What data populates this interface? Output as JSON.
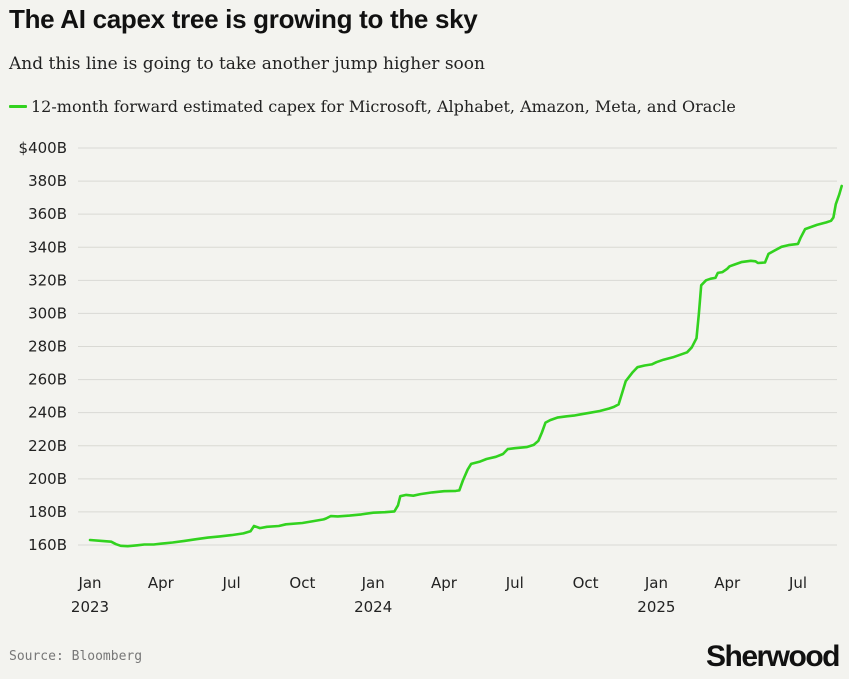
{
  "chart_data": {
    "type": "line",
    "title": "The AI capex tree is growing to the sky",
    "subtitle": "And this line is going to take another jump higher soon",
    "xlabel": "",
    "ylabel": "",
    "ylim": [
      150,
      400
    ],
    "yticks": [
      160,
      180,
      200,
      220,
      240,
      260,
      280,
      300,
      320,
      340,
      360,
      380,
      400
    ],
    "ytick_labels": [
      "160B",
      "180B",
      "200B",
      "220B",
      "240B",
      "260B",
      "280B",
      "300B",
      "320B",
      "340B",
      "360B",
      "380B",
      "$400B"
    ],
    "xlim": [
      0,
      31.2
    ],
    "xticks": [
      {
        "t": 0,
        "line1": "Jan",
        "line2": "2023"
      },
      {
        "t": 3,
        "line1": "Apr",
        "line2": ""
      },
      {
        "t": 6,
        "line1": "Jul",
        "line2": ""
      },
      {
        "t": 9,
        "line1": "Oct",
        "line2": ""
      },
      {
        "t": 12,
        "line1": "Jan",
        "line2": "2024"
      },
      {
        "t": 15,
        "line1": "Apr",
        "line2": ""
      },
      {
        "t": 18,
        "line1": "Jul",
        "line2": ""
      },
      {
        "t": 21,
        "line1": "Oct",
        "line2": ""
      },
      {
        "t": 24,
        "line1": "Jan",
        "line2": "2025"
      },
      {
        "t": 27,
        "line1": "Apr",
        "line2": ""
      },
      {
        "t": 30,
        "line1": "Jul",
        "line2": ""
      }
    ],
    "grid": true,
    "legend_position": "top-left",
    "series": [
      {
        "name": "12-month forward estimated capex for Microsoft, Alphabet, Amazon, Meta, and Oracle",
        "color": "#32d21f",
        "points": [
          [
            0,
            163
          ],
          [
            0.5,
            162.5
          ],
          [
            0.9,
            162
          ],
          [
            1.1,
            160.5
          ],
          [
            1.3,
            159.5
          ],
          [
            1.6,
            159.3
          ],
          [
            2.0,
            159.8
          ],
          [
            2.3,
            160.3
          ],
          [
            2.7,
            160.3
          ],
          [
            3.0,
            160.8
          ],
          [
            3.5,
            161.5
          ],
          [
            4.0,
            162.5
          ],
          [
            4.5,
            163.5
          ],
          [
            5.0,
            164.5
          ],
          [
            5.5,
            165.2
          ],
          [
            6.0,
            166
          ],
          [
            6.5,
            167
          ],
          [
            6.8,
            168.3
          ],
          [
            6.95,
            171.5
          ],
          [
            7.05,
            171
          ],
          [
            7.2,
            170.2
          ],
          [
            7.5,
            171
          ],
          [
            8.0,
            171.5
          ],
          [
            8.3,
            172.5
          ],
          [
            9.0,
            173.3
          ],
          [
            9.5,
            174.5
          ],
          [
            9.9,
            175.5
          ],
          [
            10.0,
            176
          ],
          [
            10.2,
            177.5
          ],
          [
            10.5,
            177.3
          ],
          [
            11.0,
            177.8
          ],
          [
            11.5,
            178.5
          ],
          [
            12.0,
            179.5
          ],
          [
            12.5,
            179.8
          ],
          [
            12.9,
            180.3
          ],
          [
            13.05,
            184
          ],
          [
            13.15,
            189.5
          ],
          [
            13.4,
            190.3
          ],
          [
            13.7,
            189.8
          ],
          [
            14.0,
            190.8
          ],
          [
            14.5,
            191.8
          ],
          [
            15.0,
            192.5
          ],
          [
            15.5,
            192.7
          ],
          [
            15.65,
            193
          ],
          [
            15.8,
            199
          ],
          [
            16.0,
            205.5
          ],
          [
            16.15,
            209
          ],
          [
            16.5,
            210.3
          ],
          [
            16.8,
            212
          ],
          [
            17.2,
            213.3
          ],
          [
            17.5,
            215
          ],
          [
            17.7,
            218
          ],
          [
            18.0,
            218.5
          ],
          [
            18.5,
            219.2
          ],
          [
            18.8,
            220.5
          ],
          [
            19.0,
            223
          ],
          [
            19.15,
            228
          ],
          [
            19.3,
            234
          ],
          [
            19.5,
            235.5
          ],
          [
            19.8,
            237
          ],
          [
            20.2,
            237.8
          ],
          [
            20.5,
            238.2
          ],
          [
            20.8,
            239
          ],
          [
            21.2,
            240
          ],
          [
            21.6,
            241
          ],
          [
            22.0,
            242.5
          ],
          [
            22.2,
            243.5
          ],
          [
            22.4,
            245
          ],
          [
            22.55,
            252
          ],
          [
            22.7,
            259
          ],
          [
            23.0,
            264.5
          ],
          [
            23.2,
            267.5
          ],
          [
            23.5,
            268.5
          ],
          [
            23.8,
            269.2
          ],
          [
            24.0,
            270.5
          ],
          [
            24.3,
            272
          ],
          [
            24.7,
            273.5
          ],
          [
            25.0,
            275
          ],
          [
            25.3,
            276.5
          ],
          [
            25.5,
            279.5
          ],
          [
            25.7,
            285
          ],
          [
            25.8,
            300
          ],
          [
            25.9,
            317
          ],
          [
            26.1,
            320
          ],
          [
            26.3,
            321
          ],
          [
            26.5,
            321.5
          ],
          [
            26.6,
            324.5
          ],
          [
            26.8,
            325
          ],
          [
            27.0,
            327
          ],
          [
            27.1,
            328.5
          ],
          [
            27.3,
            329.5
          ],
          [
            27.6,
            331
          ],
          [
            28.0,
            331.8
          ],
          [
            28.2,
            331.5
          ],
          [
            28.3,
            330.5
          ],
          [
            28.6,
            330.8
          ],
          [
            28.75,
            336
          ],
          [
            29.0,
            338
          ],
          [
            29.3,
            340.3
          ],
          [
            29.6,
            341.3
          ],
          [
            30.0,
            342
          ],
          [
            30.1,
            345.5
          ],
          [
            30.3,
            351
          ],
          [
            30.8,
            353.5
          ],
          [
            31.2,
            355
          ],
          [
            31.4,
            356
          ],
          [
            31.5,
            358
          ],
          [
            31.6,
            366
          ],
          [
            31.75,
            372
          ],
          [
            31.85,
            377
          ]
        ]
      }
    ]
  },
  "source": "Source: Bloomberg",
  "brand": "Sherwood",
  "colors": {
    "line": "#32d21f",
    "grid": "#d9d9d4",
    "background": "#f3f3ef"
  }
}
